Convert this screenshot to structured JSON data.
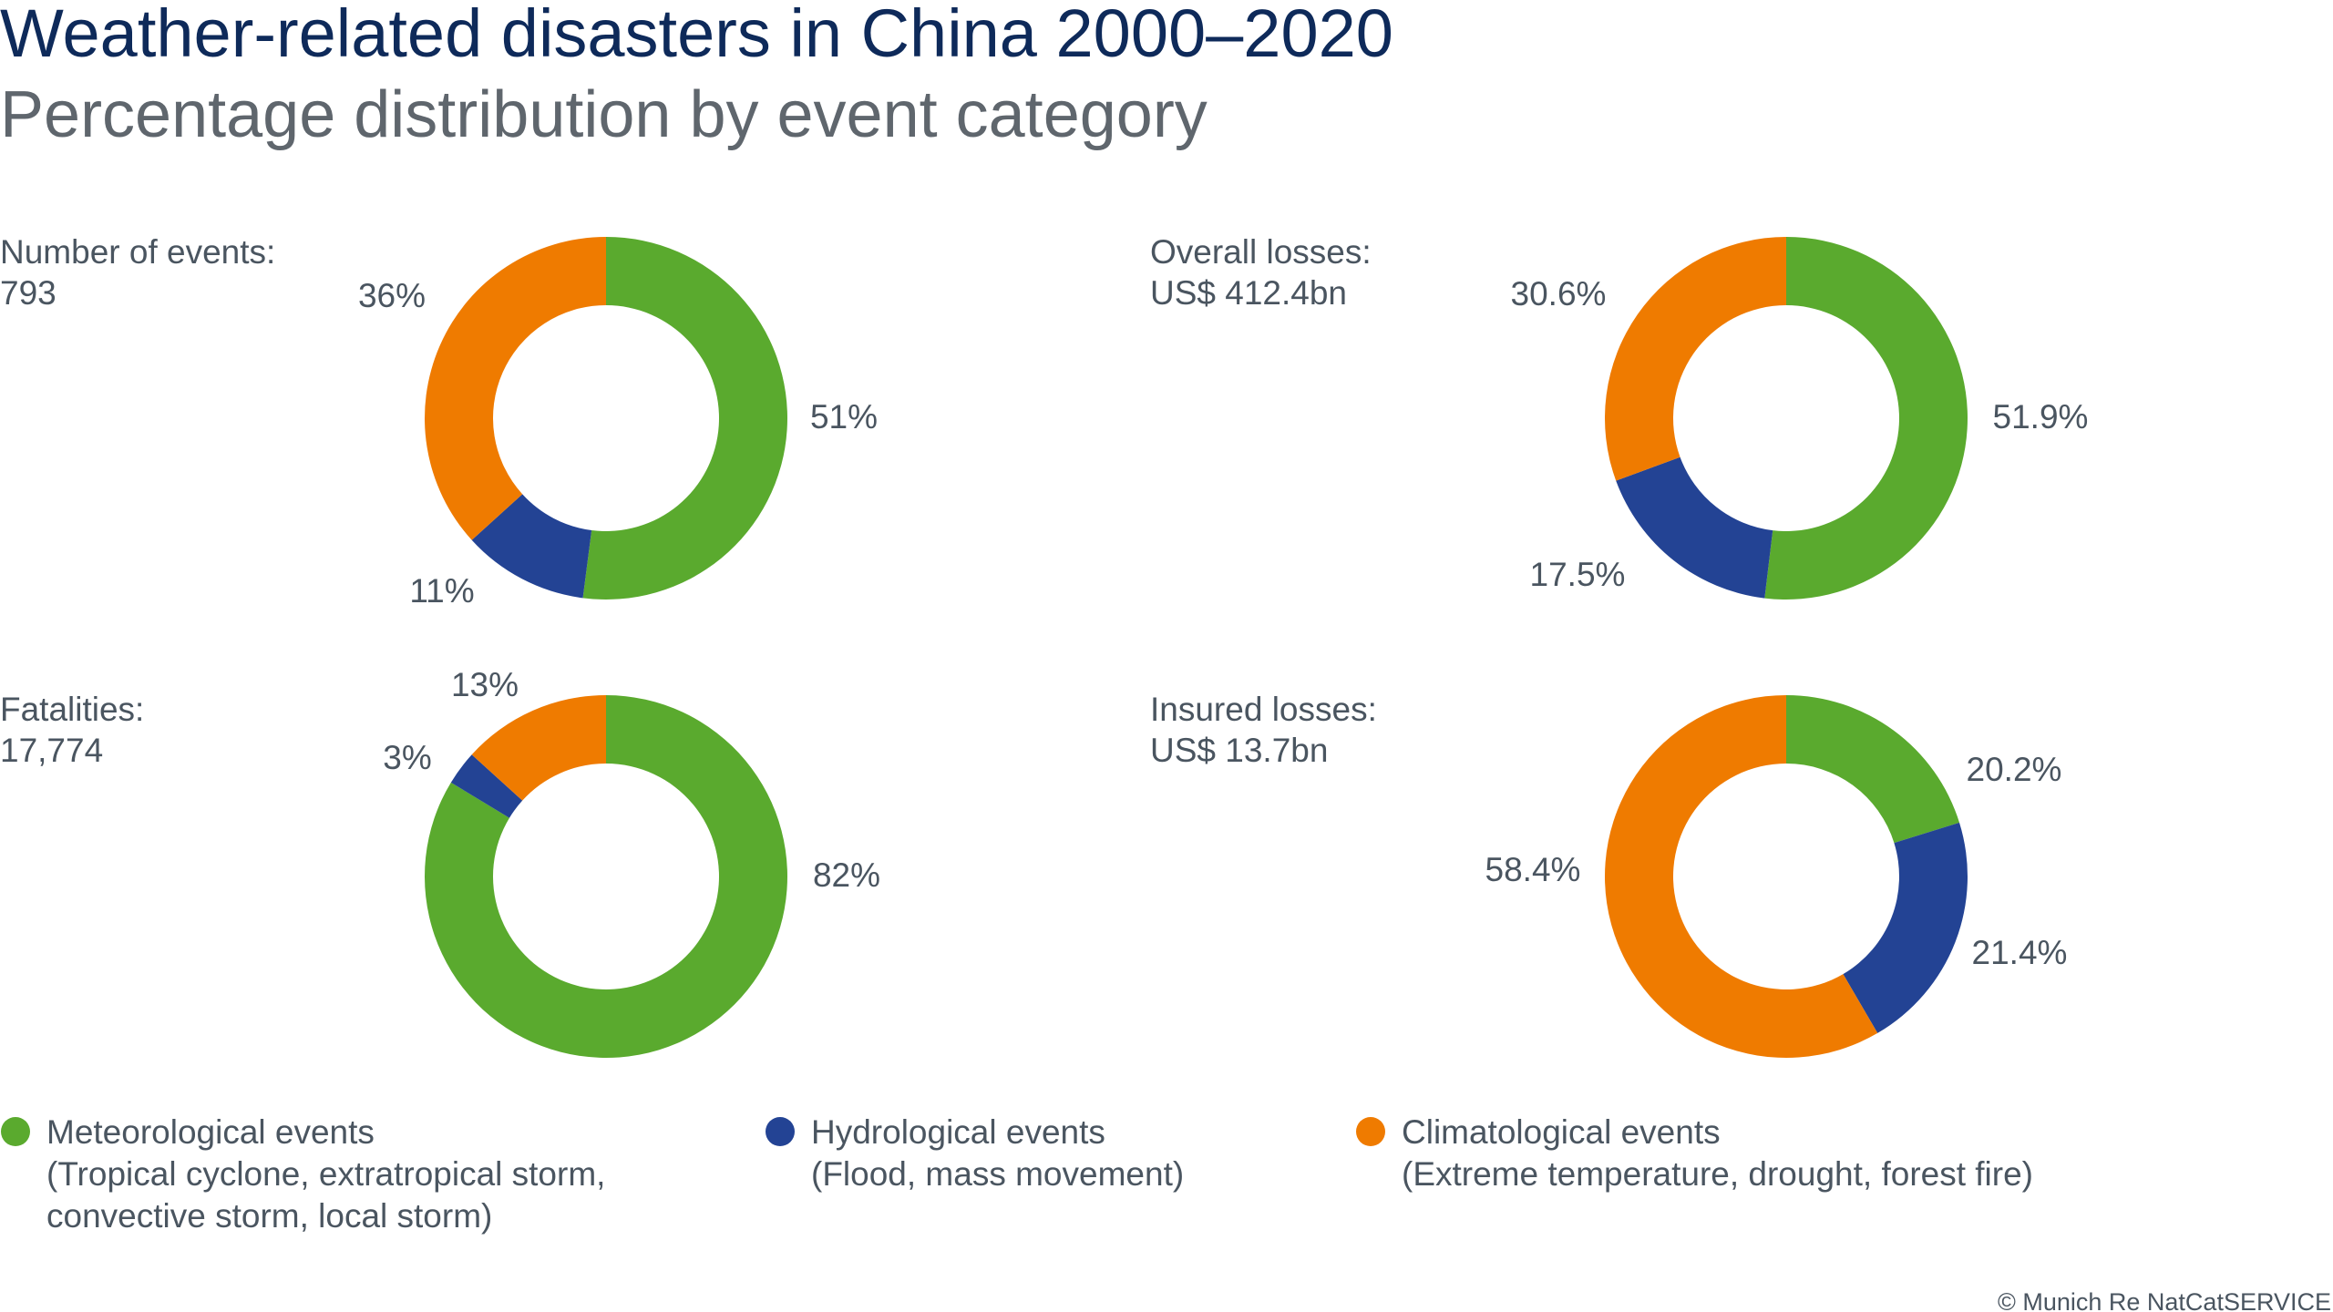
{
  "colors": {
    "meteorological": "#5aaa2e",
    "hydrological": "#234394",
    "climatological": "#ef7b00"
  },
  "chart_data": {
    "type": "pie",
    "title": "Weather-related disasters in China 2000–2020",
    "subtitle": "Percentage distribution by event category",
    "charts": [
      {
        "label": "Number of events:",
        "total": "793",
        "values": [
          51,
          11,
          36
        ],
        "value_labels": [
          "51%",
          "11%",
          "36%"
        ]
      },
      {
        "label": "Overall losses:",
        "total": "US$ 412.4bn",
        "values": [
          51.9,
          17.5,
          30.6
        ],
        "value_labels": [
          "51.9%",
          "17.5%",
          "30.6%"
        ]
      },
      {
        "label": "Fatalities:",
        "total": "17,774",
        "values": [
          82,
          3,
          13
        ],
        "value_labels": [
          "82%",
          "3%",
          "13%"
        ]
      },
      {
        "label": "Insured losses:",
        "total": "US$ 13.7bn",
        "values": [
          20.2,
          21.4,
          58.4
        ],
        "value_labels": [
          "20.2%",
          "21.4%",
          "58.4%"
        ]
      }
    ],
    "categories": [
      "Meteorological events",
      "Hydrological events",
      "Climatological events"
    ],
    "legend": [
      {
        "name": "Meteorological events",
        "lines": [
          "(Tropical cyclone, extratropical storm,",
          "convective storm, local storm)"
        ]
      },
      {
        "name": "Hydrological events",
        "lines": [
          "(Flood, mass movement)"
        ]
      },
      {
        "name": "Climatological events",
        "lines": [
          "(Extreme temperature, drought, forest fire)"
        ]
      }
    ],
    "legend_position": "bottom"
  },
  "footer": {
    "copyright": "© Munich Re NatCatSERVICE"
  }
}
